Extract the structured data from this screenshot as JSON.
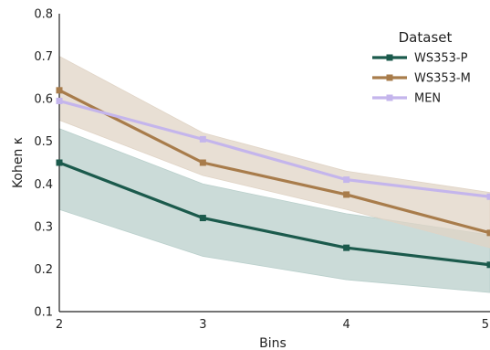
{
  "chart_data": {
    "type": "line",
    "x": [
      2,
      3,
      4,
      5
    ],
    "xlabel": "Bins",
    "ylabel": "Kohen κ",
    "xlim": [
      2,
      5
    ],
    "ylim": [
      0.1,
      0.8
    ],
    "x_ticks": [
      "2",
      "3",
      "4",
      "5"
    ],
    "y_ticks": [
      "0.1",
      "0.2",
      "0.3",
      "0.4",
      "0.5",
      "0.6",
      "0.7",
      "0.8"
    ],
    "grid": false,
    "legend": {
      "title": "Dataset",
      "placement": "top-right"
    },
    "series": [
      {
        "name": "WS353-P",
        "color": "#1b5a4c",
        "band_color": "#b9cfcb",
        "values": [
          0.45,
          0.32,
          0.25,
          0.21
        ],
        "lower": [
          0.34,
          0.23,
          0.175,
          0.145
        ],
        "upper": [
          0.53,
          0.4,
          0.33,
          0.28
        ]
      },
      {
        "name": "WS353-M",
        "color": "#a87c4b",
        "band_color": "#e0d4c6",
        "values": [
          0.62,
          0.45,
          0.375,
          0.285
        ],
        "lower": [
          0.55,
          0.42,
          0.34,
          0.25
        ],
        "upper": [
          0.7,
          0.52,
          0.43,
          0.38
        ]
      },
      {
        "name": "MEN",
        "color": "#c4b5ec",
        "band_color": null,
        "values": [
          0.595,
          0.505,
          0.41,
          0.37
        ],
        "lower": null,
        "upper": null
      }
    ]
  }
}
